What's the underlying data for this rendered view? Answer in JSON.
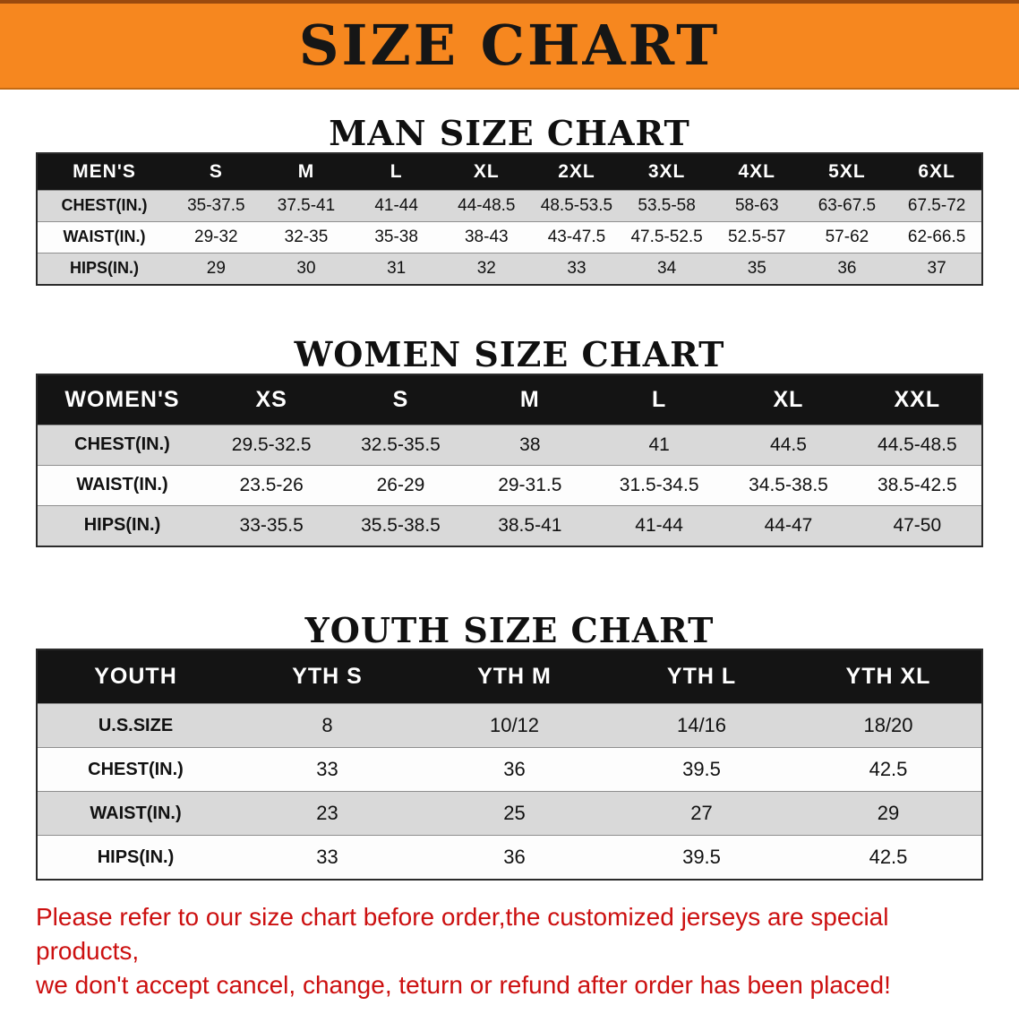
{
  "banner": {
    "title": "SIZE CHART"
  },
  "colors": {
    "banner_orange": "#f6871f",
    "table_header_black": "#141414",
    "row_gray": "#d9d9d9",
    "row_white": "#fdfdfd",
    "disclaimer_red": "#cc1010"
  },
  "chart_data": [
    {
      "type": "table",
      "title": "MAN SIZE CHART",
      "columns": [
        "MEN'S",
        "S",
        "M",
        "L",
        "XL",
        "2XL",
        "3XL",
        "4XL",
        "5XL",
        "6XL"
      ],
      "rows": [
        [
          "CHEST(IN.)",
          "35-37.5",
          "37.5-41",
          "41-44",
          "44-48.5",
          "48.5-53.5",
          "53.5-58",
          "58-63",
          "63-67.5",
          "67.5-72"
        ],
        [
          "WAIST(IN.)",
          "29-32",
          "32-35",
          "35-38",
          "38-43",
          "43-47.5",
          "47.5-52.5",
          "52.5-57",
          "57-62",
          "62-66.5"
        ],
        [
          "HIPS(IN.)",
          "29",
          "30",
          "31",
          "32",
          "33",
          "34",
          "35",
          "36",
          "37"
        ]
      ]
    },
    {
      "type": "table",
      "title": "WOMEN SIZE CHART",
      "columns": [
        "WOMEN'S",
        "XS",
        "S",
        "M",
        "L",
        "XL",
        "XXL"
      ],
      "rows": [
        [
          "CHEST(IN.)",
          "29.5-32.5",
          "32.5-35.5",
          "38",
          "41",
          "44.5",
          "44.5-48.5"
        ],
        [
          "WAIST(IN.)",
          "23.5-26",
          "26-29",
          "29-31.5",
          "31.5-34.5",
          "34.5-38.5",
          "38.5-42.5"
        ],
        [
          "HIPS(IN.)",
          "33-35.5",
          "35.5-38.5",
          "38.5-41",
          "41-44",
          "44-47",
          "47-50"
        ]
      ]
    },
    {
      "type": "table",
      "title": "YOUTH SIZE CHART",
      "columns": [
        "YOUTH",
        "YTH S",
        "YTH M",
        "YTH L",
        "YTH XL"
      ],
      "rows": [
        [
          "U.S.SIZE",
          "8",
          "10/12",
          "14/16",
          "18/20"
        ],
        [
          "CHEST(IN.)",
          "33",
          "36",
          "39.5",
          "42.5"
        ],
        [
          "WAIST(IN.)",
          "23",
          "25",
          "27",
          "29"
        ],
        [
          "HIPS(IN.)",
          "33",
          "36",
          "39.5",
          "42.5"
        ]
      ]
    }
  ],
  "footer": {
    "line1": "Please refer to our size chart before order,the customized jerseys are special products,",
    "line2": "we don't accept cancel, change, teturn or refund after order has been placed!"
  }
}
